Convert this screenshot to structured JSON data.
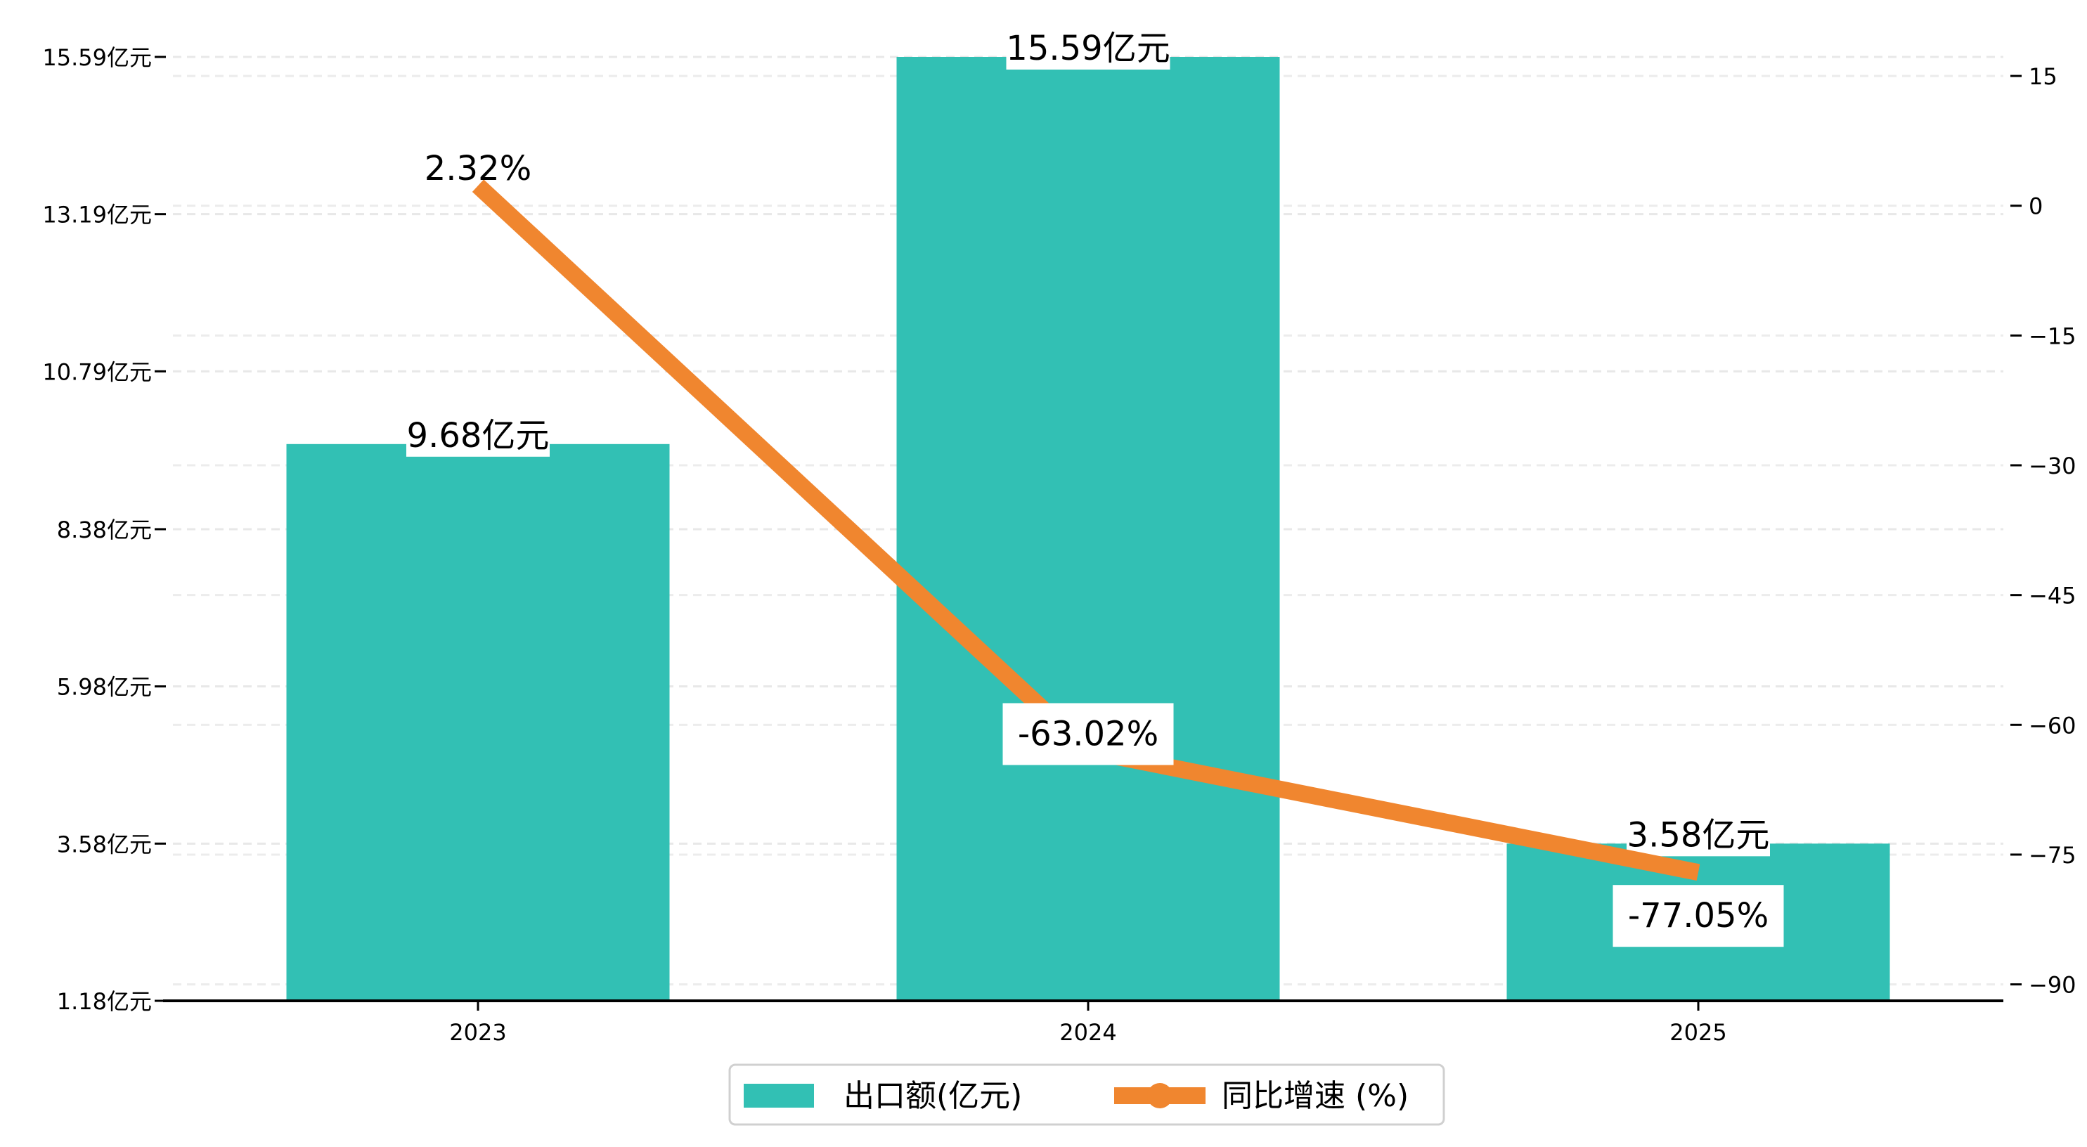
{
  "chart_data": {
    "type": "bar+line",
    "categories": [
      "2023",
      "2024",
      "2025"
    ],
    "series": [
      {
        "name": "出口额(亿元)",
        "type": "bar",
        "axis": "left",
        "values": [
          9.68,
          15.59,
          3.58
        ],
        "labels": [
          "9.68亿元",
          "15.59亿元",
          "3.58亿元"
        ],
        "color": "#32C0B4"
      },
      {
        "name": "同比增速 (%)",
        "type": "line",
        "axis": "right",
        "values": [
          2.32,
          -63.02,
          -77.05
        ],
        "labels": [
          "2.32%",
          "-63.02%",
          "-77.05%"
        ],
        "color": "#F0862F"
      }
    ],
    "left_axis": {
      "ylim": [
        1.18,
        15.59
      ],
      "ticks": [
        1.18,
        3.58,
        5.98,
        8.38,
        10.79,
        13.19,
        15.59
      ],
      "tick_labels": [
        "1.18亿元",
        "3.58亿元",
        "5.98亿元",
        "8.38亿元",
        "10.79亿元",
        "13.19亿元",
        "15.59亿元"
      ]
    },
    "right_axis": {
      "ylim": [
        -91.9,
        17.2
      ],
      "ticks": [
        15,
        0,
        -15,
        -30,
        -45,
        -60,
        -75,
        -90
      ],
      "tick_labels": [
        "15",
        "0",
        "−15",
        "−30",
        "−45",
        "−60",
        "−75",
        "−90"
      ]
    },
    "grid": true,
    "legend": {
      "position": "bottom-center",
      "entries": [
        "出口额(亿元)",
        "同比增速 (%)"
      ]
    },
    "title": "",
    "xlabel": "",
    "ylabel": ""
  }
}
